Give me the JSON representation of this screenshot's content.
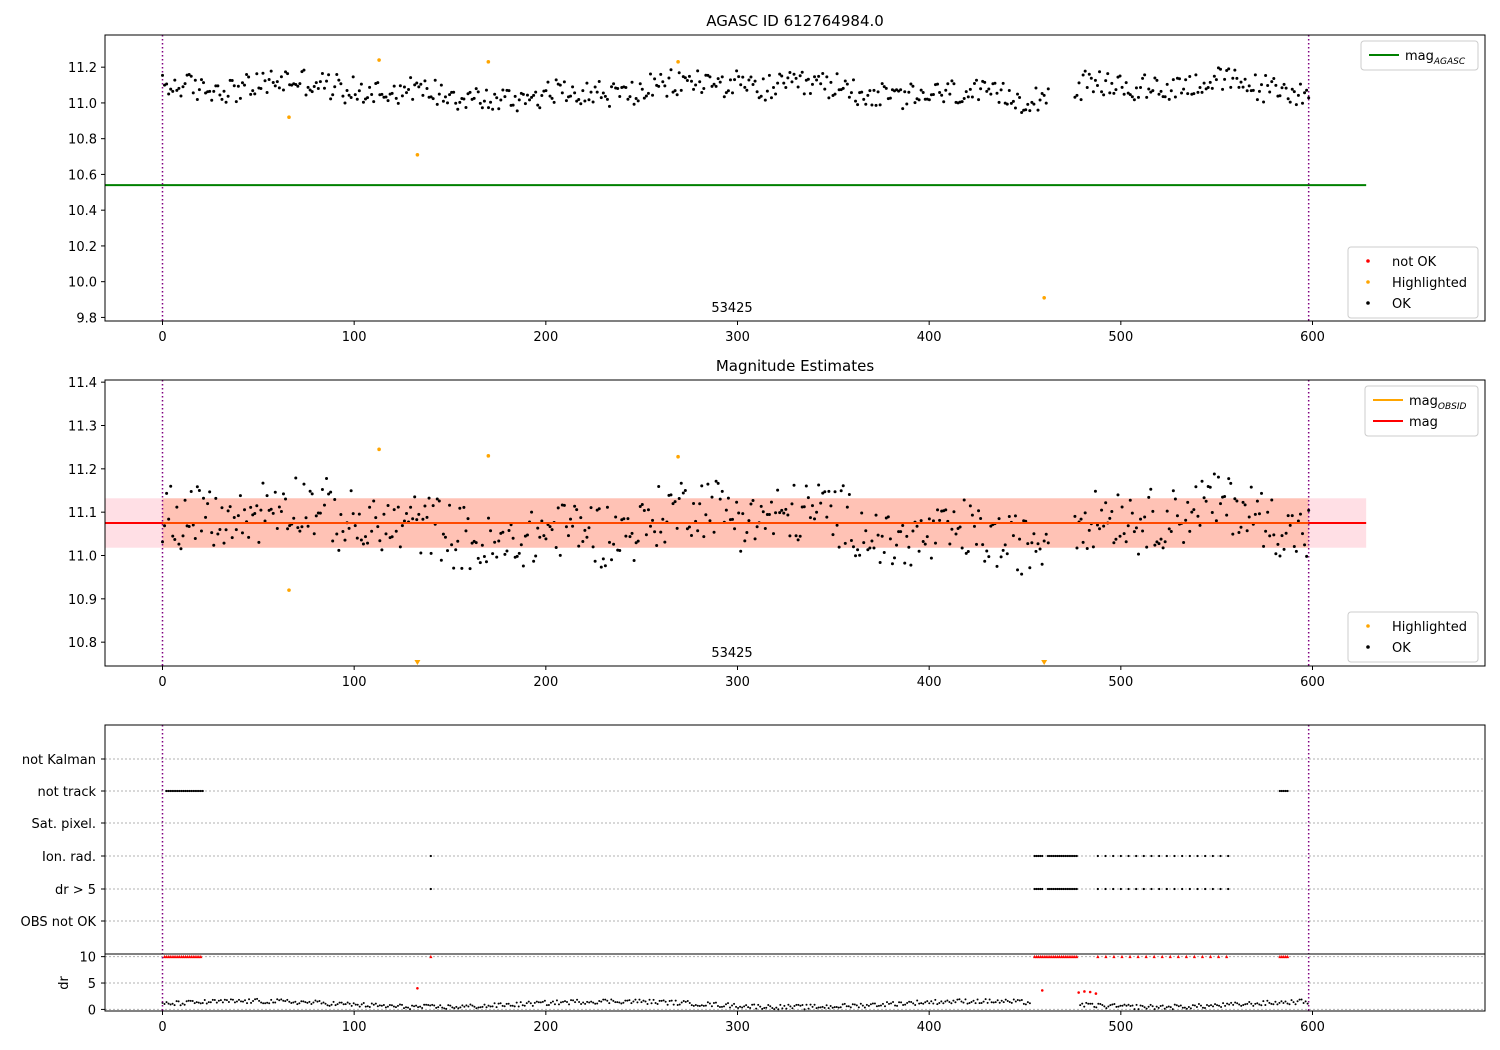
{
  "figure": {
    "title_top": "AGASC ID 612764984.0",
    "title_mid": "Magnitude Estimates"
  },
  "chart_data": [
    {
      "type": "scatter",
      "title": "AGASC ID 612764984.0",
      "obsid_label": "53425",
      "xlim": [
        -30,
        690
      ],
      "ylim": [
        9.78,
        11.38
      ],
      "xticks": [
        0,
        100,
        200,
        300,
        400,
        500,
        600
      ],
      "yticks": [
        9.8,
        10.0,
        10.2,
        10.4,
        10.6,
        10.8,
        11.0,
        11.2
      ],
      "vlines": [
        0,
        598
      ],
      "hline": {
        "name": "mag_AGASC",
        "y": 10.54,
        "x_range": [
          -30,
          628
        ],
        "color": "#008000"
      },
      "series": [
        {
          "name": "not OK",
          "color": "#ff0000",
          "points": []
        },
        {
          "name": "Highlighted",
          "color": "#ffa500",
          "points": [
            [
              66,
              10.92
            ],
            [
              113,
              11.24
            ],
            [
              133,
              10.71
            ],
            [
              170,
              11.23
            ],
            [
              269,
              11.23
            ],
            [
              460,
              9.91
            ]
          ]
        },
        {
          "name": "OK",
          "color": "#000000",
          "model": "noisy",
          "n": 560,
          "x_range": [
            0,
            598
          ],
          "gaps": [
            [
              463,
              476
            ]
          ],
          "y_center": 11.07,
          "y_spread": 0.09
        }
      ],
      "legend": [
        {
          "label": "mag",
          "sub": "AGASC",
          "kind": "line",
          "color": "#008000",
          "position": "top-right"
        },
        {
          "label": "not OK",
          "kind": "dot",
          "color": "#ff0000",
          "position": "bottom-right"
        },
        {
          "label": "Highlighted",
          "kind": "dot",
          "color": "#ffa500",
          "position": "bottom-right"
        },
        {
          "label": "OK",
          "kind": "dot",
          "color": "#000000",
          "position": "bottom-right"
        }
      ]
    },
    {
      "type": "scatter",
      "title": "Magnitude Estimates",
      "obsid_label": "53425",
      "xlim": [
        -30,
        690
      ],
      "ylim": [
        10.745,
        11.405
      ],
      "xticks": [
        0,
        100,
        200,
        300,
        400,
        500,
        600
      ],
      "yticks": [
        10.8,
        10.9,
        11.0,
        11.1,
        11.2,
        11.3,
        11.4
      ],
      "vlines": [
        0,
        598
      ],
      "mag": 11.075,
      "mag_band": [
        11.018,
        11.132
      ],
      "band_color": "#ffc0cb",
      "band_obsid_color": "#ffa07a",
      "band_x_range": [
        -30,
        628
      ],
      "series": [
        {
          "name": "Highlighted",
          "color": "#ffa500",
          "points": [
            [
              66,
              10.92
            ],
            [
              113,
              11.245
            ],
            [
              170,
              11.23
            ],
            [
              269,
              11.228
            ]
          ],
          "clipped_low": [
            133,
            460
          ]
        },
        {
          "name": "OK",
          "color": "#000000",
          "model": "noisy",
          "n": 560,
          "x_range": [
            0,
            598
          ],
          "gaps": [
            [
              463,
              476
            ]
          ],
          "y_center": 11.07,
          "y_spread": 0.085
        }
      ],
      "legend": [
        {
          "label": "mag",
          "sub": "OBSID",
          "kind": "line",
          "color": "#ffa500",
          "position": "top-right"
        },
        {
          "label": "mag",
          "kind": "line",
          "color": "#ff0000",
          "position": "top-right"
        },
        {
          "label": "Highlighted",
          "kind": "dot",
          "color": "#ffa500",
          "position": "bottom-right"
        },
        {
          "label": "OK",
          "kind": "dot",
          "color": "#000000",
          "position": "bottom-right"
        }
      ]
    },
    {
      "type": "scatter",
      "title": "",
      "xlim": [
        -30,
        690
      ],
      "xticks": [
        0,
        100,
        200,
        300,
        400,
        500,
        600
      ],
      "vlines": [
        0,
        598
      ],
      "flag_rows": [
        "not Kalman",
        "not track",
        "Sat. pixel.",
        "Ion. rad.",
        "dr > 5",
        "OBS not OK"
      ],
      "flags": {
        "not Kalman": [],
        "not track": [
          [
            2,
            21
          ],
          [
            583,
            587
          ]
        ],
        "Sat. pixel.": [],
        "Ion. rad.": [
          [
            140,
            140
          ],
          [
            455,
            459
          ],
          [
            462,
            477
          ],
          [
            488,
            556
          ]
        ],
        "dr > 5": [
          [
            140,
            140
          ],
          [
            455,
            459
          ],
          [
            462,
            477
          ],
          [
            488,
            556
          ]
        ],
        "OBS not OK": []
      },
      "dr_ylabel": "dr",
      "dr_yticks": [
        0,
        5,
        10
      ],
      "dr_ylim": [
        -0.3,
        10.5
      ],
      "dr_clipped_red": [
        [
          1,
          20
        ],
        [
          140,
          140
        ],
        [
          455,
          477
        ],
        [
          488,
          556
        ],
        [
          583,
          587
        ]
      ],
      "dr_red_points": [
        [
          133,
          4.0
        ],
        [
          459,
          3.6
        ],
        [
          478,
          3.2
        ],
        [
          481,
          3.4
        ],
        [
          484,
          3.3
        ],
        [
          487,
          3.0
        ]
      ],
      "dr_model": {
        "y_center": 1.0,
        "y_spread": 0.8
      }
    }
  ]
}
